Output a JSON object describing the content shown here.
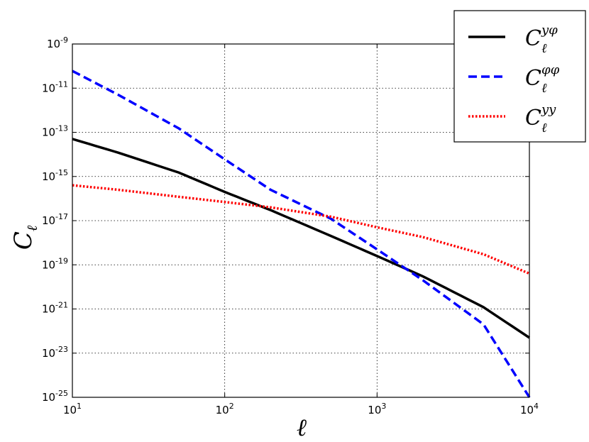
{
  "chart_data": {
    "type": "line",
    "xlabel": "ℓ",
    "ylabel": "C",
    "ylabel_sub": "ℓ",
    "xscale": "log",
    "yscale": "log",
    "xlim": [
      10,
      10000
    ],
    "ylim": [
      1e-25,
      1e-09
    ],
    "x_ticks": [
      {
        "value": 10,
        "base": "10",
        "exp": "1"
      },
      {
        "value": 100,
        "base": "10",
        "exp": "2"
      },
      {
        "value": 1000,
        "base": "10",
        "exp": "3"
      },
      {
        "value": 10000,
        "base": "10",
        "exp": "4"
      }
    ],
    "y_ticks": [
      {
        "value": 1e-09,
        "base": "10",
        "exp": "-9"
      },
      {
        "value": 1e-11,
        "base": "10",
        "exp": "-11"
      },
      {
        "value": 1e-13,
        "base": "10",
        "exp": "-13"
      },
      {
        "value": 1e-15,
        "base": "10",
        "exp": "-15"
      },
      {
        "value": 1e-17,
        "base": "10",
        "exp": "-17"
      },
      {
        "value": 1e-19,
        "base": "10",
        "exp": "-19"
      },
      {
        "value": 1e-21,
        "base": "10",
        "exp": "-21"
      },
      {
        "value": 1e-23,
        "base": "10",
        "exp": "-23"
      },
      {
        "value": 1e-25,
        "base": "10",
        "exp": "-25"
      }
    ],
    "grid": true,
    "legend_position": "top-right",
    "series": [
      {
        "name": "C_ℓ^{yφ}",
        "legend_base": "C",
        "legend_sub": "ℓ",
        "legend_sup": "yφ",
        "color": "#000000",
        "linestyle": "solid",
        "x": [
          10,
          20,
          50,
          100,
          200,
          500,
          1000,
          2000,
          5000,
          10000
        ],
        "y": [
          5e-14,
          1.2e-14,
          1.5e-15,
          2e-16,
          3e-17,
          2e-18,
          2.5e-19,
          3e-20,
          1.2e-21,
          5e-23
        ]
      },
      {
        "name": "C_ℓ^{φφ}",
        "legend_base": "C",
        "legend_sub": "ℓ",
        "legend_sup": "φφ",
        "color": "#0000ff",
        "linestyle": "dashed",
        "x": [
          10,
          20,
          50,
          100,
          200,
          500,
          1000,
          2000,
          5000,
          10000
        ],
        "y": [
          6e-11,
          5e-12,
          1.5e-13,
          6e-15,
          2.5e-16,
          1.2e-17,
          5e-19,
          2e-20,
          2e-22,
          1e-25
        ]
      },
      {
        "name": "C_ℓ^{yy}",
        "legend_base": "C",
        "legend_sub": "ℓ",
        "legend_sup": "yy",
        "color": "#ff0000",
        "linestyle": "dotted",
        "x": [
          10,
          20,
          50,
          100,
          200,
          500,
          1000,
          2000,
          5000,
          10000
        ],
        "y": [
          4e-16,
          2.5e-16,
          1.2e-16,
          7e-17,
          4e-17,
          1.5e-17,
          5e-18,
          1.8e-18,
          3e-19,
          4e-20
        ]
      }
    ]
  }
}
